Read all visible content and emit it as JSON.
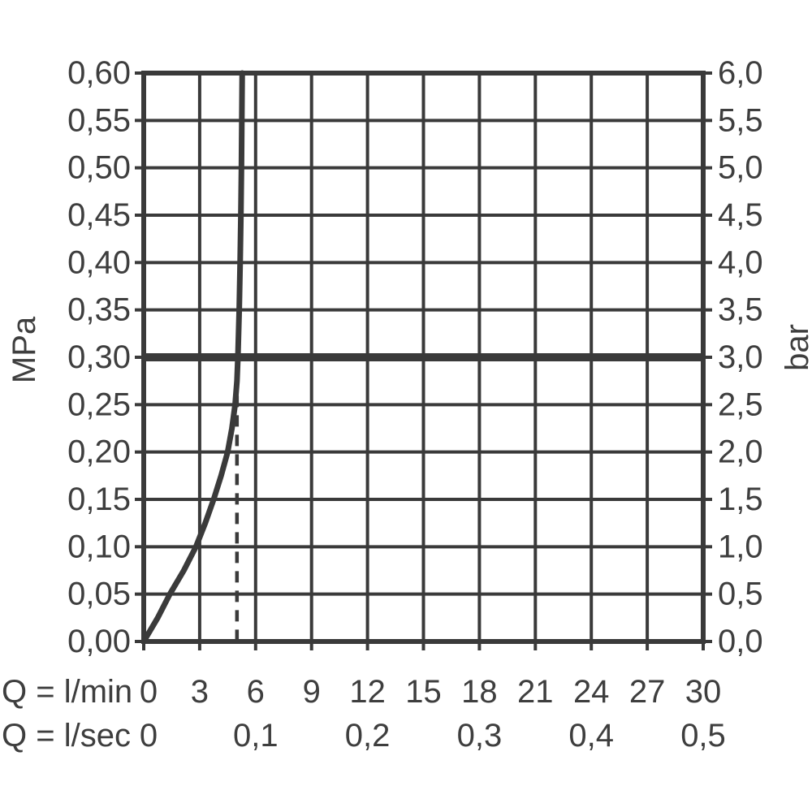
{
  "chart_data": {
    "type": "line",
    "grid": true,
    "legend": "none",
    "x_axis": {
      "range": [
        0,
        30
      ],
      "gridline_step": 3,
      "rows": [
        {
          "label": "Q = l/min",
          "ticks": [
            {
              "value": 0,
              "text": "0"
            },
            {
              "value": 3,
              "text": "3"
            },
            {
              "value": 6,
              "text": "6"
            },
            {
              "value": 9,
              "text": "9"
            },
            {
              "value": 12,
              "text": "12"
            },
            {
              "value": 15,
              "text": "15"
            },
            {
              "value": 18,
              "text": "18"
            },
            {
              "value": 21,
              "text": "21"
            },
            {
              "value": 24,
              "text": "24"
            },
            {
              "value": 27,
              "text": "27"
            },
            {
              "value": 30,
              "text": "30"
            }
          ]
        },
        {
          "label": "Q = l/sec",
          "ticks": [
            {
              "value": 0,
              "text": "0"
            },
            {
              "value": 6,
              "text": "0,1"
            },
            {
              "value": 12,
              "text": "0,2"
            },
            {
              "value": 18,
              "text": "0,3"
            },
            {
              "value": 24,
              "text": "0,4"
            },
            {
              "value": 30,
              "text": "0,5"
            }
          ]
        }
      ]
    },
    "y_left": {
      "unit": "MPa",
      "range": [
        0,
        0.6
      ],
      "step": 0.05,
      "tick_labels": [
        "0,00",
        "0,05",
        "0,10",
        "0,15",
        "0,20",
        "0,25",
        "0,30",
        "0,35",
        "0,40",
        "0,45",
        "0,50",
        "0,55",
        "0,60"
      ]
    },
    "y_right": {
      "unit": "bar",
      "range": [
        0,
        6
      ],
      "step": 0.5,
      "tick_labels": [
        "0,0",
        "0,5",
        "1,0",
        "1,5",
        "2,0",
        "2,5",
        "3,0",
        "3,5",
        "4,0",
        "4,5",
        "5,0",
        "5,5",
        "6,0"
      ]
    },
    "series": [
      {
        "name": "flow-rate-curve",
        "points_lmin_mpa": [
          [
            0,
            0
          ],
          [
            0.75,
            0.025
          ],
          [
            1.4,
            0.05
          ],
          [
            2.15,
            0.075
          ],
          [
            2.8,
            0.1
          ],
          [
            3.3,
            0.125
          ],
          [
            3.75,
            0.15
          ],
          [
            4.15,
            0.175
          ],
          [
            4.5,
            0.2
          ],
          [
            4.73,
            0.225
          ],
          [
            4.9,
            0.25
          ],
          [
            5.0,
            0.275
          ],
          [
            5.05,
            0.3
          ],
          [
            5.12,
            0.35
          ],
          [
            5.17,
            0.4
          ],
          [
            5.21,
            0.45
          ],
          [
            5.24,
            0.5
          ],
          [
            5.26,
            0.55
          ],
          [
            5.28,
            0.6
          ]
        ]
      }
    ],
    "reference_line": {
      "orientation": "horizontal",
      "value_mpa": 0.3,
      "value_bar": 3.0
    },
    "dashed_guide": {
      "orientation": "vertical",
      "value_lmin": 5,
      "from_mpa": 0,
      "to_mpa": 0.28
    },
    "colors": {
      "line": "#3a3a3a",
      "text": "#3e3e3e",
      "background": "#ffffff"
    }
  }
}
